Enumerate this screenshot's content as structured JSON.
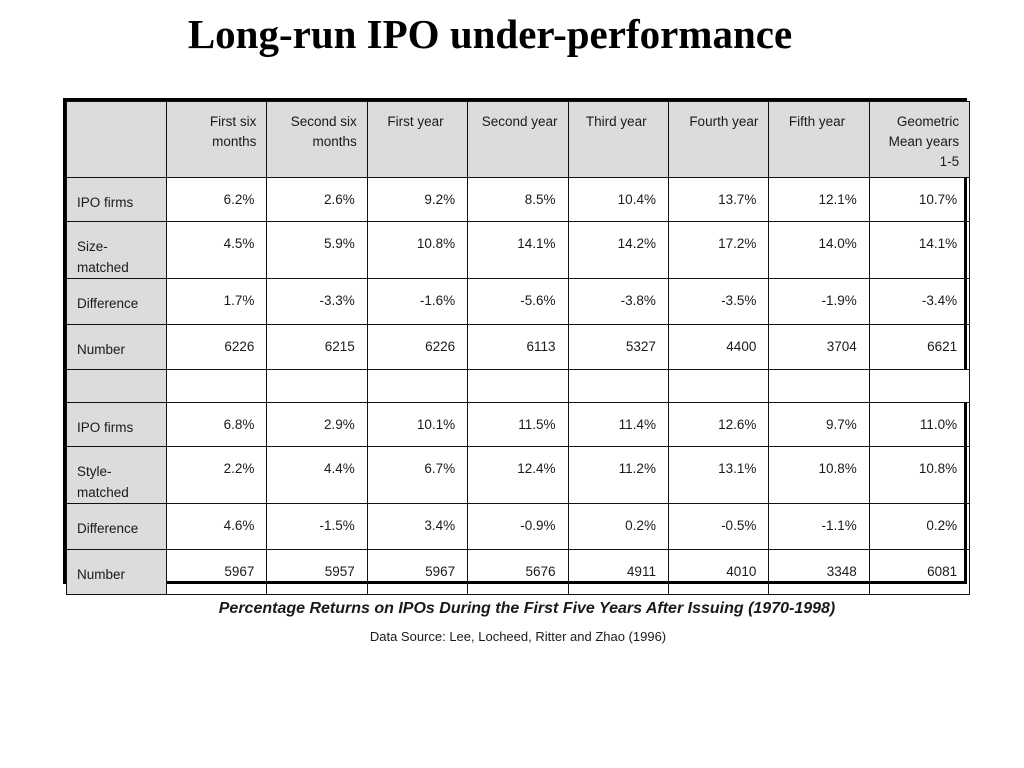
{
  "title": "Long-run IPO under-performance",
  "table": {
    "columns": [
      "First six months",
      "Second six months",
      "First year",
      "Second year",
      "Third year",
      "Fourth year",
      "Fifth year",
      "Geometric Mean years 1-5"
    ],
    "panel_1": [
      {
        "label": "IPO firms",
        "values": [
          "6.2%",
          "2.6%",
          "9.2%",
          "8.5%",
          "10.4%",
          "13.7%",
          "12.1%",
          "10.7%"
        ]
      },
      {
        "label": "Size-matched",
        "values": [
          "4.5%",
          "5.9%",
          "10.8%",
          "14.1%",
          "14.2%",
          "17.2%",
          "14.0%",
          "14.1%"
        ]
      },
      {
        "label": "Difference",
        "values": [
          "1.7%",
          "-3.3%",
          "-1.6%",
          "-5.6%",
          "-3.8%",
          "-3.5%",
          "-1.9%",
          "-3.4%"
        ]
      },
      {
        "label": "Number",
        "values": [
          "6226",
          "6215",
          "6226",
          "6113",
          "5327",
          "4400",
          "3704",
          "6621"
        ]
      }
    ],
    "panel_2": [
      {
        "label": "IPO firms",
        "values": [
          "6.8%",
          "2.9%",
          "10.1%",
          "11.5%",
          "11.4%",
          "12.6%",
          "9.7%",
          "11.0%"
        ]
      },
      {
        "label": "Style-matched",
        "values": [
          "2.2%",
          "4.4%",
          "6.7%",
          "12.4%",
          "11.2%",
          "13.1%",
          "10.8%",
          "10.8%"
        ]
      },
      {
        "label": "Difference",
        "values": [
          "4.6%",
          "-1.5%",
          "3.4%",
          "-0.9%",
          "0.2%",
          "-0.5%",
          "-1.1%",
          "0.2%"
        ]
      },
      {
        "label": "Number",
        "values": [
          "5967",
          "5957",
          "5967",
          "5676",
          "4911",
          "4010",
          "3348",
          "6081"
        ]
      }
    ]
  },
  "caption": "Percentage Returns on IPOs During the First Five Years After Issuing (1970-1998)",
  "source": "Data Source: Lee, Locheed, Ritter and Zhao (1996)"
}
